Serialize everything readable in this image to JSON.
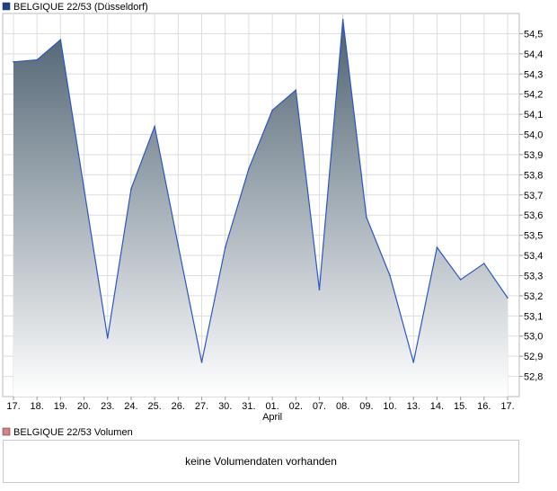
{
  "legend": {
    "main_label": "BELGIQUE 22/53 (Düsseldorf)",
    "main_color": "#1c3f94",
    "volume_label": "BELGIQUE 22/53 Volumen",
    "volume_color": "#d98080"
  },
  "volume_message": "keine Volumendaten vorhanden",
  "colors": {
    "line": "#2b56c4",
    "area_top": "#4d6170",
    "area_bottom": "#ffffff",
    "grid": "#dddddd",
    "frame": "#bbbbbb"
  },
  "chart_data": {
    "type": "area",
    "title": "",
    "xlabel": "",
    "ylabel": "",
    "ylim": [
      52.7,
      54.6
    ],
    "grid": true,
    "y_ticks": [
      "54,5",
      "54,4",
      "54,3",
      "54,2",
      "54,1",
      "54,0",
      "53,9",
      "53,8",
      "53,7",
      "53,6",
      "53,5",
      "53,4",
      "53,3",
      "53,2",
      "53,1",
      "53,0",
      "52,9",
      "52,8"
    ],
    "x_ticks": [
      "17.",
      "18.",
      "19.",
      "20.",
      "23.",
      "24.",
      "25.",
      "26.",
      "27.",
      "30.",
      "31.",
      "01.",
      "02.",
      "07.",
      "08.",
      "09.",
      "10.",
      "13.",
      "14.",
      "15.",
      "16.",
      "17."
    ],
    "x_group_label": {
      "text": "April",
      "under_tick_index": 11
    },
    "series": [
      {
        "values": [
          54.36,
          54.37,
          54.47,
          53.73,
          52.99,
          53.73,
          54.04,
          53.45,
          52.87,
          53.44,
          53.83,
          54.12,
          54.22,
          53.23,
          54.57,
          53.59,
          53.3,
          52.87,
          53.44,
          53.28,
          53.36,
          53.19
        ]
      }
    ]
  }
}
